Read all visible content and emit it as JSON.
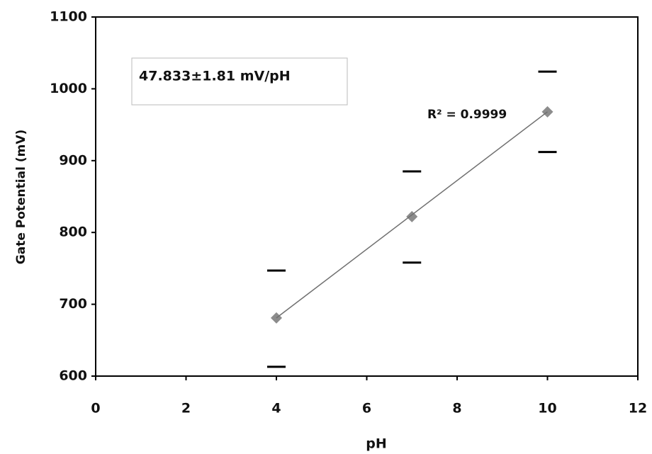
{
  "chart_data": {
    "type": "scatter",
    "x_label": "pH",
    "y_label": "Gate Potential (mV)",
    "annotations": [
      "47.833±1.81 mV/pH",
      "R² = 0.9999"
    ],
    "xlim": [
      0,
      12
    ],
    "xticks": [
      0,
      2,
      4,
      6,
      8,
      10,
      12
    ],
    "ylim": [
      600,
      1100
    ],
    "yticks": [
      600,
      700,
      800,
      900,
      1000,
      1100
    ],
    "series": [
      {
        "marker": "diamond",
        "color": "#8c8c8c",
        "x": [
          4,
          7,
          10
        ],
        "values": [
          681,
          822,
          968
        ]
      },
      {
        "marker": "dash",
        "color": "#000000",
        "x": [
          4,
          4,
          7,
          7,
          10,
          10
        ],
        "values": [
          747,
          613,
          885,
          758,
          1024,
          912
        ]
      },
      {
        "marker": "line",
        "color": "#707070",
        "x": [
          4,
          10
        ],
        "values": [
          681,
          968
        ]
      }
    ]
  }
}
